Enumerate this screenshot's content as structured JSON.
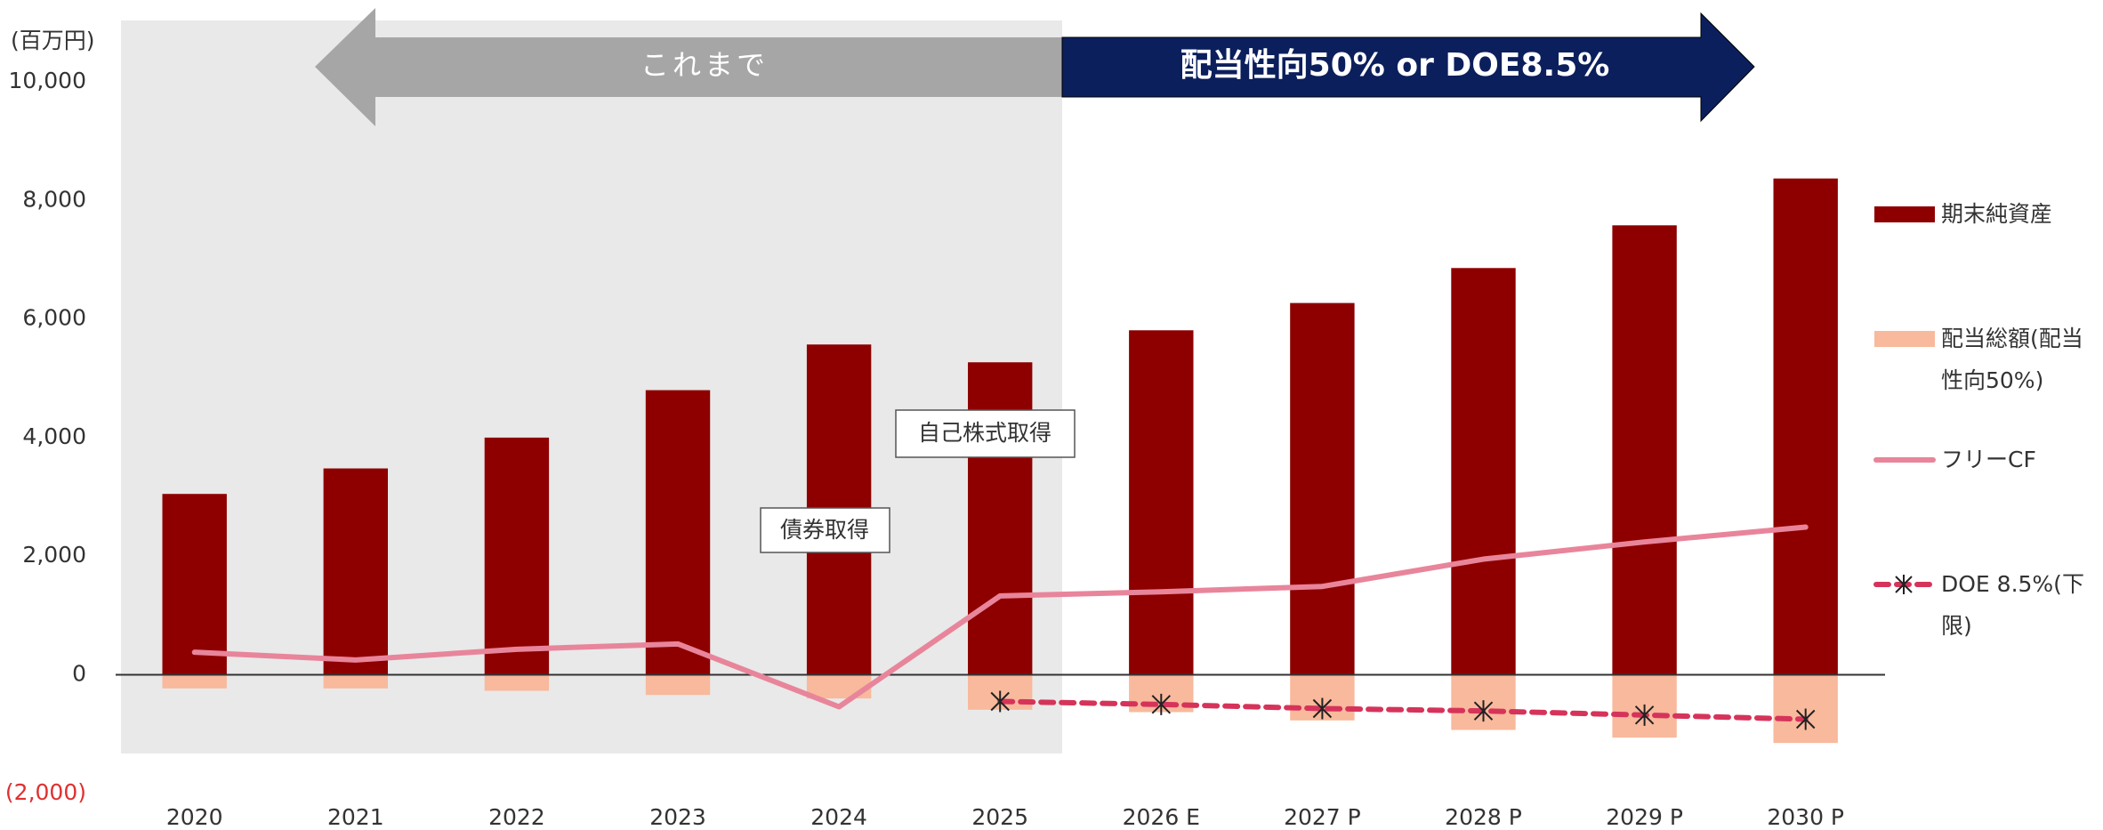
{
  "chart_data": {
    "type": "bar",
    "y_label": "(百万円)",
    "eras": [
      "これまで",
      "配当性向50% or DOE8.5%"
    ],
    "annotations": [
      "自己株式取得",
      "債券取得"
    ],
    "categories": [
      "2020",
      "2021",
      "2022",
      "2023",
      "2024",
      "2025",
      "2026 E",
      "2027 P",
      "2028 P",
      "2029 P",
      "2030 P"
    ],
    "series": [
      {
        "name": "期末純資産",
        "type": "bar",
        "color": "#8e0000",
        "values": [
          3050,
          3480,
          4000,
          4800,
          5570,
          5270,
          5810,
          6270,
          6860,
          7580,
          8370
        ]
      },
      {
        "name": "配当総額(配当性向50%)",
        "type": "bar",
        "color": "#f8b99c",
        "values": [
          -230,
          -230,
          -270,
          -340,
          -400,
          -590,
          -630,
          -770,
          -930,
          -1060,
          -1150
        ]
      },
      {
        "name": "フリーCF",
        "type": "line",
        "color": "#e8859b",
        "values": [
          380,
          250,
          430,
          520,
          -540,
          1330,
          1400,
          1490,
          1950,
          2240,
          2490
        ]
      },
      {
        "name": "DOE 8.5%(下限)",
        "type": "line",
        "color": "#d6335a",
        "dash": true,
        "marker": "x",
        "values": [
          null,
          null,
          null,
          null,
          null,
          -450,
          -500,
          -570,
          -610,
          -680,
          -750
        ]
      }
    ],
    "ylim": [
      -2000,
      10000
    ],
    "yticks": [
      {
        "value": -2000,
        "label": "(2,000)"
      },
      0,
      {
        "value": 2000,
        "label": "2,000"
      },
      {
        "value": 4000,
        "label": "4,000"
      },
      {
        "value": 6000,
        "label": "6,000"
      },
      {
        "value": 8000,
        "label": "8,000"
      },
      {
        "value": 10000,
        "label": "10,000"
      }
    ],
    "negative_tick_color": "#e03030",
    "legend": "right"
  }
}
